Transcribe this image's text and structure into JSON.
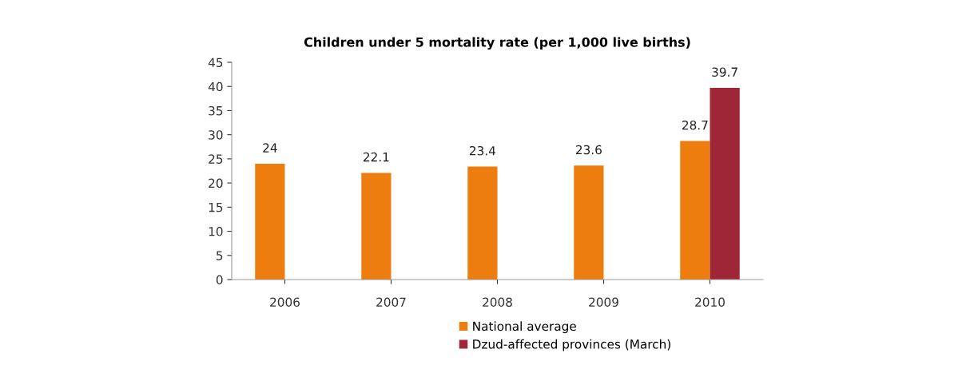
{
  "chart_data": {
    "type": "bar",
    "title": "Children under 5 mortality rate (per 1,000 live births)",
    "categories": [
      "2006",
      "2007",
      "2008",
      "2009",
      "2010"
    ],
    "series": [
      {
        "name": "National average",
        "color": "#ed7d0e",
        "values": [
          24,
          22.1,
          23.4,
          23.6,
          28.7
        ]
      },
      {
        "name": "Dzud-affected provinces (March)",
        "color": "#9e2636",
        "values": [
          null,
          null,
          null,
          null,
          39.7
        ]
      }
    ],
    "ylim": [
      0,
      45
    ],
    "yticks": [
      0,
      5,
      10,
      15,
      20,
      25,
      30,
      35,
      40,
      45
    ],
    "data_labels": true,
    "grid": false,
    "legend": "bottom"
  }
}
